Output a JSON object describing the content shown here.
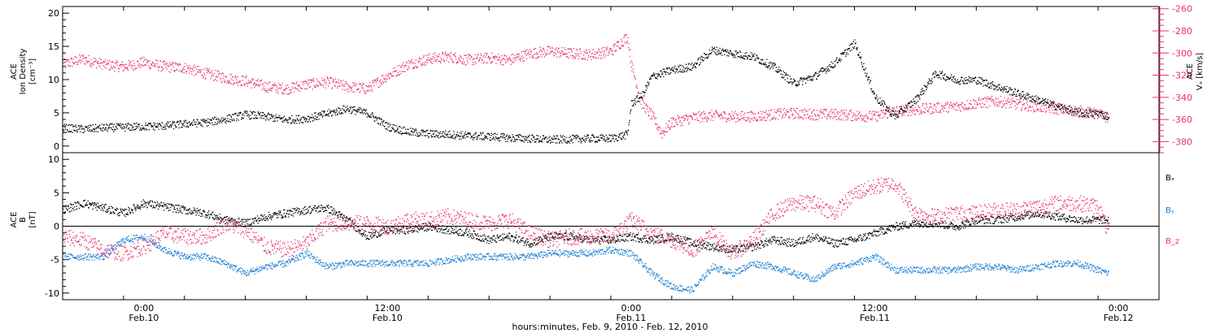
{
  "figure": {
    "xlabel": "hours:minutes, Feb.  9, 2010 - Feb. 12, 2010",
    "x_ticks": [
      {
        "t": 0,
        "time": "0:00",
        "date": "Feb.10"
      },
      {
        "t": 12,
        "time": "12:00",
        "date": "Feb.10"
      },
      {
        "t": 24,
        "time": "0:00",
        "date": "Feb.11"
      },
      {
        "t": 36,
        "time": "12:00",
        "date": "Feb.11"
      },
      {
        "t": 48,
        "time": "0:00",
        "date": "Feb.12"
      }
    ],
    "xlim_hours_from_feb10": [
      -4,
      50
    ]
  },
  "colors": {
    "black": "#000000",
    "red": "#e8336d",
    "blue": "#1a7fd4",
    "axis": "#000000"
  },
  "chart_data": [
    {
      "type": "scatter",
      "title": "",
      "ylabel_left_lines": [
        "ACE",
        "Ion Density",
        "[cm⁻³]"
      ],
      "ylabel_right_lines": [
        "ACE",
        "Vₓ [km/s]"
      ],
      "ylim_left": [
        -1,
        21
      ],
      "yticks_left": [
        0,
        5,
        10,
        15,
        20
      ],
      "ylim_right": [
        -390,
        -258
      ],
      "yticks_right": [
        -380,
        -360,
        -340,
        -320,
        -300,
        -280,
        -260
      ],
      "series": [
        {
          "axis": "left",
          "color": "black",
          "x": [
            -4,
            -3,
            -2,
            -1,
            0,
            1,
            2,
            3,
            4,
            5,
            6,
            7,
            8,
            9,
            10,
            11,
            12,
            13,
            14,
            15,
            16,
            17,
            18,
            19,
            20,
            21,
            22,
            23,
            23.8,
            24,
            24.5,
            25,
            26,
            27,
            28,
            29,
            30,
            31,
            32,
            33,
            34,
            35,
            36,
            37,
            38,
            39,
            40,
            41,
            42,
            43,
            44,
            45,
            46,
            47,
            47.5
          ],
          "values": [
            2.8,
            2.6,
            2.8,
            2.9,
            3.0,
            3.1,
            3.4,
            3.6,
            4.1,
            4.8,
            4.5,
            4.0,
            4.2,
            4.9,
            5.7,
            5.0,
            3.0,
            2.2,
            1.9,
            1.8,
            1.6,
            1.5,
            1.3,
            1.2,
            1.0,
            1.1,
            1.2,
            1.2,
            1.8,
            6.5,
            7.5,
            10.5,
            11.5,
            12.0,
            14.5,
            14.0,
            13.5,
            12.0,
            9.5,
            10.5,
            12.5,
            15.5,
            7.5,
            4.5,
            7.0,
            11.0,
            10.0,
            10.0,
            9.0,
            8.0,
            7.0,
            6.0,
            5.0,
            5.0,
            4.5
          ]
        },
        {
          "axis": "right",
          "color": "red",
          "x": [
            -4,
            -3,
            -2,
            -1,
            0,
            1,
            2,
            3,
            4,
            5,
            6,
            7,
            8,
            9,
            10,
            11,
            12,
            13,
            14,
            15,
            16,
            17,
            18,
            19,
            20,
            21,
            22,
            23,
            23.8,
            24,
            24.5,
            25,
            25.5,
            26,
            27,
            28,
            29,
            30,
            31,
            32,
            33,
            34,
            35,
            36,
            37,
            38,
            39,
            40,
            41,
            42,
            43,
            44,
            45,
            46,
            47,
            47.5
          ],
          "values": [
            -310,
            -305,
            -310,
            -312,
            -308,
            -312,
            -313,
            -318,
            -322,
            -325,
            -330,
            -332,
            -328,
            -326,
            -330,
            -332,
            -320,
            -310,
            -305,
            -303,
            -306,
            -304,
            -306,
            -300,
            -298,
            -300,
            -301,
            -298,
            -285,
            -310,
            -345,
            -356,
            -372,
            -362,
            -358,
            -356,
            -357,
            -357,
            -355,
            -354,
            -355,
            -355,
            -356,
            -357,
            -352,
            -351,
            -349,
            -348,
            -345,
            -343,
            -346,
            -348,
            -350,
            -352,
            -355,
            -358
          ]
        }
      ]
    },
    {
      "type": "scatter",
      "title": "",
      "ylabel_left_lines": [
        "ACE",
        "B",
        "[nT]"
      ],
      "ylim": [
        -11,
        11
      ],
      "yticks": [
        -10,
        -5,
        0,
        5,
        10
      ],
      "zero_line": true,
      "legend_position": "right",
      "series": [
        {
          "name": "Bₓ",
          "color": "black",
          "x": [
            -4,
            -3,
            -2,
            -1,
            0,
            1,
            2,
            3,
            4,
            5,
            6,
            7,
            8,
            9,
            10,
            11,
            12,
            13,
            14,
            15,
            16,
            17,
            18,
            19,
            20,
            21,
            22,
            23,
            24,
            25,
            26,
            27,
            28,
            29,
            30,
            31,
            32,
            33,
            34,
            35,
            36,
            37,
            38,
            39,
            40,
            41,
            42,
            43,
            44,
            45,
            46,
            47,
            47.5
          ],
          "values": [
            2.5,
            3.5,
            2.8,
            2.0,
            3.5,
            3.0,
            2.5,
            2.0,
            1.0,
            0.5,
            1.5,
            2.0,
            2.5,
            2.8,
            1.0,
            -1.5,
            -0.5,
            -0.5,
            0.0,
            -0.5,
            -1.0,
            -2.0,
            -1.5,
            -2.5,
            -1.5,
            -1.5,
            -2.0,
            -2.0,
            -1.5,
            -2.0,
            -1.5,
            -2.5,
            -3.0,
            -3.5,
            -3.0,
            -2.0,
            -2.5,
            -1.5,
            -2.5,
            -2.0,
            -1.0,
            0.0,
            0.5,
            0.5,
            0.0,
            1.0,
            1.0,
            1.5,
            2.0,
            1.5,
            1.0,
            1.0,
            1.0
          ]
        },
        {
          "name": "Bᵧ",
          "color": "blue",
          "x": [
            -4,
            -3,
            -2,
            -1,
            0,
            1,
            2,
            3,
            4,
            5,
            6,
            7,
            8,
            9,
            10,
            11,
            12,
            13,
            14,
            15,
            16,
            17,
            18,
            19,
            20,
            21,
            22,
            23,
            24,
            25,
            26,
            27,
            28,
            29,
            30,
            31,
            32,
            33,
            34,
            35,
            36,
            37,
            38,
            39,
            40,
            41,
            42,
            43,
            44,
            45,
            46,
            47,
            47.5
          ],
          "values": [
            -4.5,
            -4.5,
            -4.5,
            -2.0,
            -1.5,
            -3.5,
            -4.5,
            -4.5,
            -5.5,
            -7.0,
            -6.0,
            -5.5,
            -4.0,
            -6.0,
            -5.5,
            -5.5,
            -5.5,
            -5.5,
            -5.5,
            -5.0,
            -4.5,
            -4.5,
            -4.5,
            -4.5,
            -4.0,
            -4.0,
            -4.0,
            -3.5,
            -4.0,
            -7.0,
            -9.0,
            -9.5,
            -6.0,
            -7.0,
            -5.5,
            -6.0,
            -7.0,
            -8.0,
            -6.0,
            -5.5,
            -4.5,
            -6.5,
            -6.5,
            -6.5,
            -6.5,
            -6.0,
            -6.0,
            -6.5,
            -6.0,
            -5.5,
            -5.5,
            -6.5,
            -7.0
          ]
        },
        {
          "name": "B_z",
          "color": "red",
          "x": [
            -4,
            -3,
            -2,
            -1,
            0,
            1,
            2,
            3,
            4,
            5,
            6,
            7,
            8,
            9,
            10,
            11,
            12,
            13,
            14,
            15,
            16,
            17,
            18,
            19,
            20,
            21,
            22,
            23,
            24,
            25,
            26,
            27,
            28,
            29,
            30,
            31,
            32,
            33,
            34,
            35,
            36,
            37,
            38,
            39,
            40,
            41,
            42,
            43,
            44,
            45,
            46,
            47,
            47.5
          ],
          "values": [
            -1.5,
            -2.0,
            -3.5,
            -4.0,
            -3.0,
            -1.0,
            -1.5,
            -1.5,
            0.5,
            -0.5,
            -3.0,
            -3.5,
            -2.5,
            0.5,
            0.5,
            0.5,
            0.0,
            1.0,
            1.0,
            1.5,
            1.0,
            0.5,
            1.0,
            -1.0,
            -2.0,
            -1.5,
            -1.5,
            -1.5,
            1.0,
            -1.0,
            -2.0,
            -3.5,
            -1.0,
            -4.0,
            -2.0,
            2.0,
            3.5,
            3.5,
            2.0,
            5.0,
            6.0,
            6.5,
            2.0,
            1.5,
            2.0,
            2.0,
            2.5,
            2.5,
            3.0,
            3.5,
            3.5,
            3.0,
            -1.0
          ]
        }
      ]
    }
  ]
}
